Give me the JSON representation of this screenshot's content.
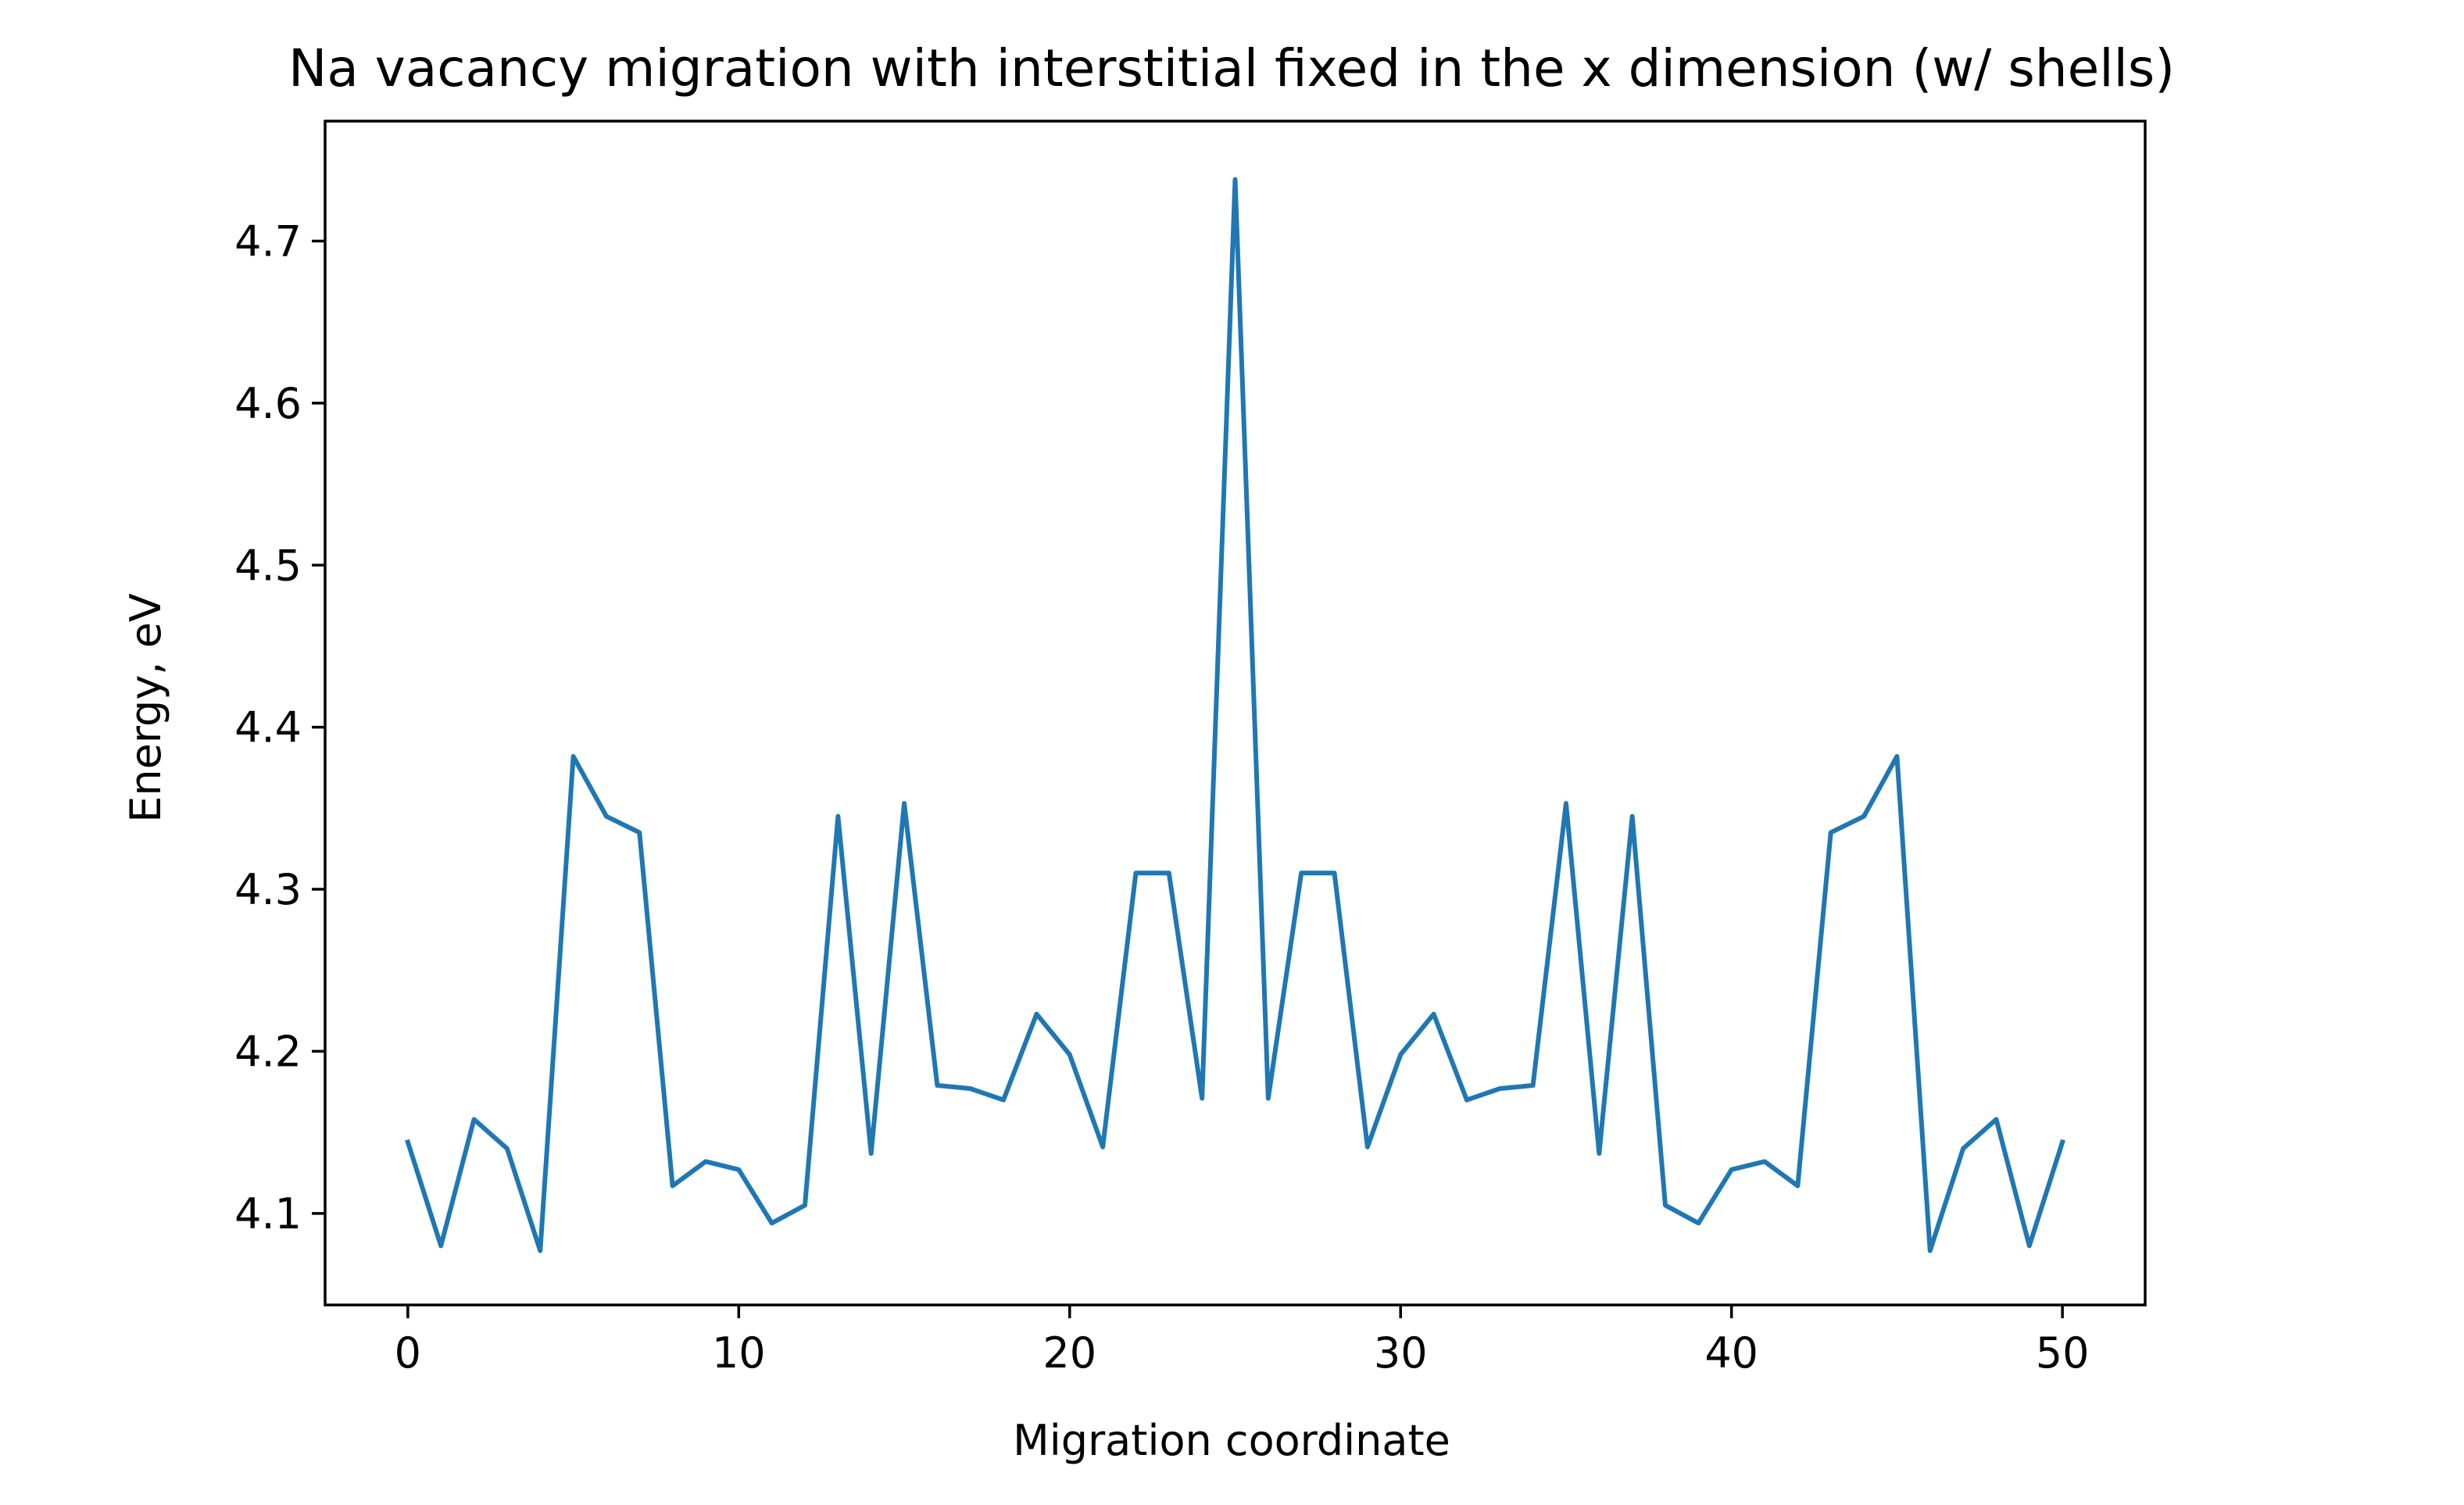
{
  "chart_data": {
    "type": "line",
    "title": "Na vacancy migration with interstitial fixed in the x dimension (w/ shells)",
    "xlabel": "Migration coordinate",
    "ylabel": "Energy, eV",
    "xlim": [
      -2.5,
      52.5
    ],
    "ylim": [
      4.0435,
      4.774
    ],
    "xticks": [
      0,
      10,
      20,
      30,
      40,
      50
    ],
    "xtick_labels": [
      "0",
      "10",
      "20",
      "30",
      "40",
      "50"
    ],
    "yticks": [
      4.1,
      4.2,
      4.3,
      4.4,
      4.5,
      4.6,
      4.7
    ],
    "ytick_labels": [
      "4.1",
      "4.2",
      "4.3",
      "4.4",
      "4.5",
      "4.6",
      "4.7"
    ],
    "grid": false,
    "legend": false,
    "color": "#1f77b4",
    "series": [
      {
        "x": [
          0,
          1,
          2,
          3,
          4,
          5,
          6,
          7,
          8,
          9,
          10,
          11,
          12,
          13,
          14,
          15,
          16,
          17,
          18,
          19,
          20,
          21,
          22,
          23,
          24,
          25,
          26,
          27,
          28,
          29,
          30,
          31,
          32,
          33,
          34,
          35,
          36,
          37,
          38,
          39,
          40,
          41,
          42,
          43,
          44,
          45,
          46,
          47,
          48,
          49,
          50
        ],
        "values": [
          4.144,
          4.08,
          4.158,
          4.14,
          4.077,
          4.382,
          4.345,
          4.335,
          4.117,
          4.132,
          4.127,
          4.094,
          4.105,
          4.345,
          4.137,
          4.353,
          4.179,
          4.177,
          4.17,
          4.223,
          4.198,
          4.141,
          4.31,
          4.31,
          4.171,
          4.738,
          4.171,
          4.31,
          4.31,
          4.141,
          4.198,
          4.223,
          4.17,
          4.177,
          4.179,
          4.353,
          4.137,
          4.345,
          4.105,
          4.094,
          4.127,
          4.132,
          4.117,
          4.335,
          4.345,
          4.382,
          4.077,
          4.14,
          4.158,
          4.08,
          4.144
        ]
      }
    ]
  }
}
